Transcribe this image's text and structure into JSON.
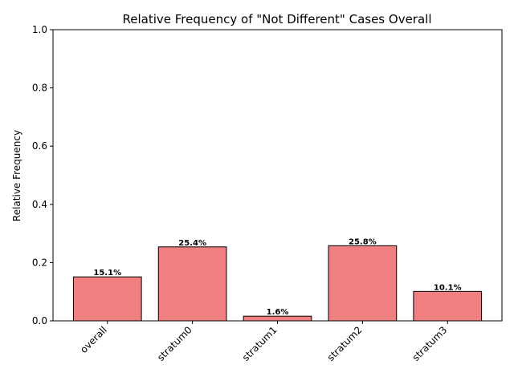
{
  "chart_data": {
    "type": "bar",
    "title": "Relative Frequency of \"Not Different\" Cases Overall",
    "xlabel": "",
    "ylabel": "Relative Frequency",
    "categories": [
      "overall",
      "stratum0",
      "stratum1",
      "stratum2",
      "stratum3"
    ],
    "values": [
      0.151,
      0.254,
      0.016,
      0.258,
      0.101
    ],
    "value_labels": [
      "15.1%",
      "25.4%",
      "1.6%",
      "25.8%",
      "10.1%"
    ],
    "ylim": [
      0,
      1.0
    ],
    "yticks": [
      0.0,
      0.2,
      0.4,
      0.6,
      0.8,
      1.0
    ],
    "ytick_labels": [
      "0.0",
      "0.2",
      "0.4",
      "0.6",
      "0.8",
      "1.0"
    ],
    "grid": false,
    "legend": "none",
    "colors": {
      "bar_fill": "#f08080",
      "bar_edge": "#000000"
    }
  }
}
